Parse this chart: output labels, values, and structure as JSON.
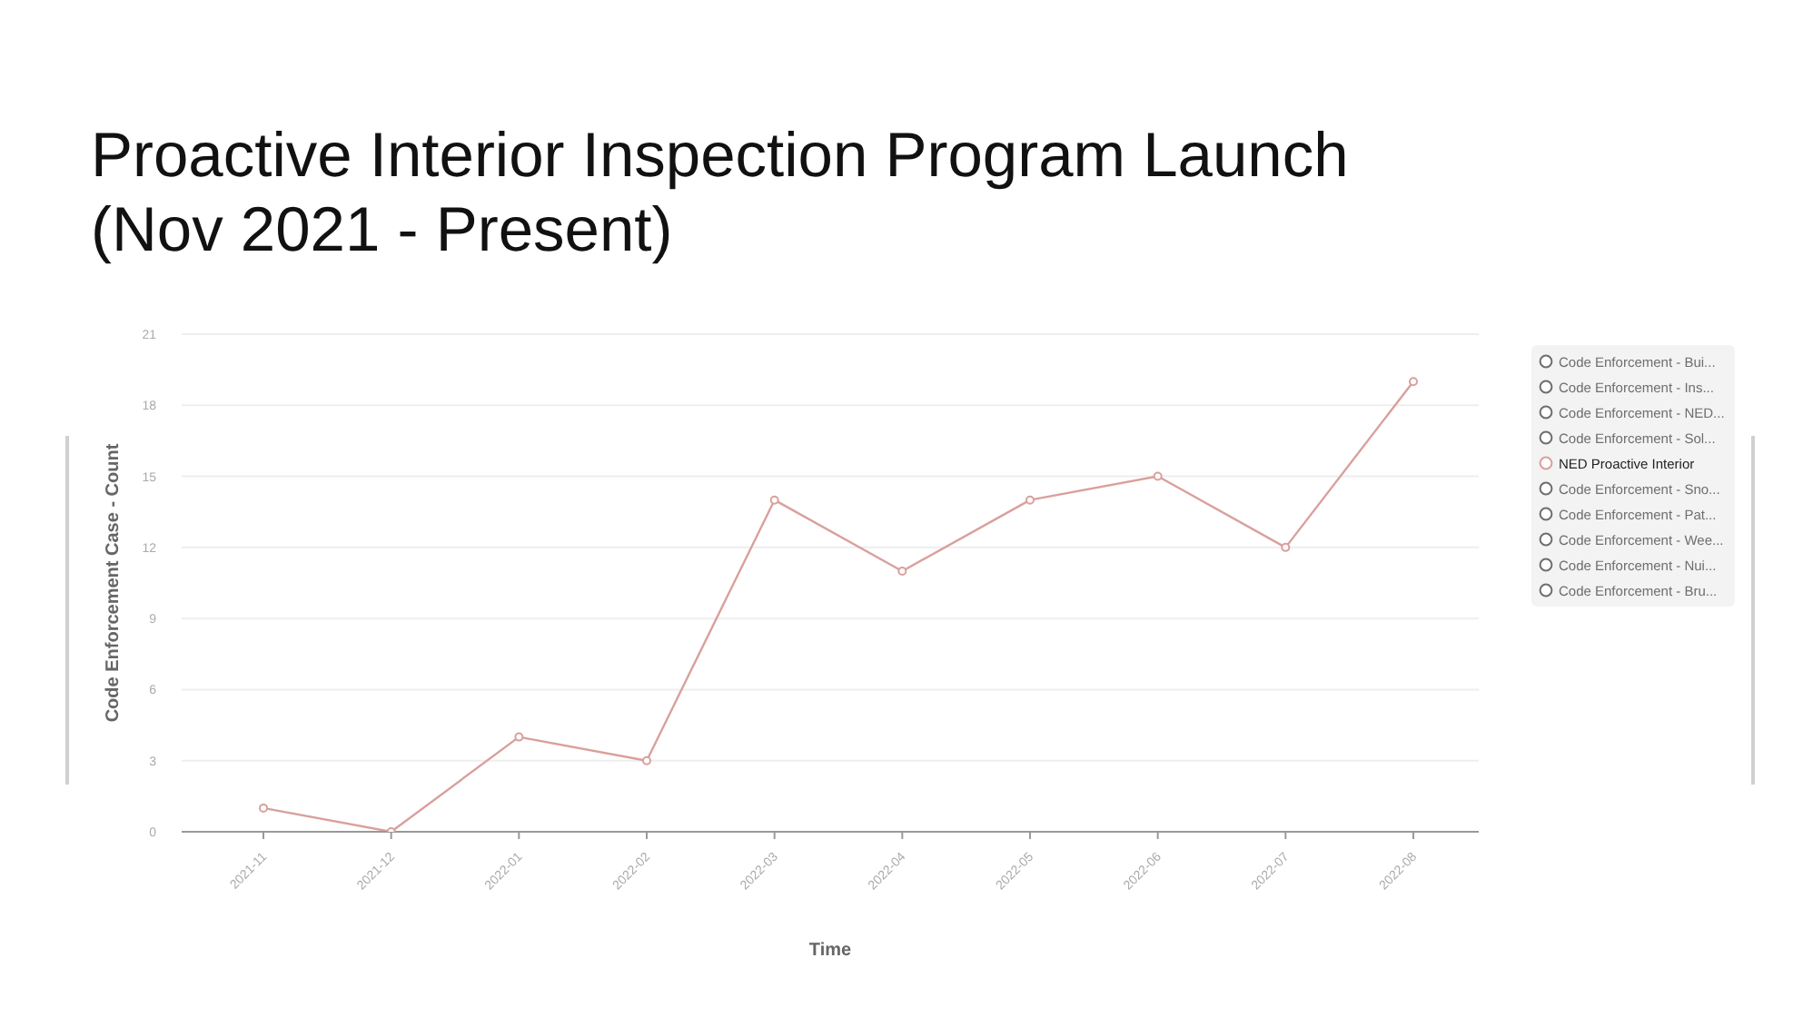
{
  "chart_data": {
    "type": "line",
    "title": "Proactive Interior Inspection Program Launch (Nov 2021 - Present)",
    "xlabel": "Time",
    "ylabel": "Code Enforcement Case - Count",
    "categories": [
      "2021-11",
      "2021-12",
      "2022-01",
      "2022-02",
      "2022-03",
      "2022-04",
      "2022-05",
      "2022-06",
      "2022-07",
      "2022-08"
    ],
    "series": [
      {
        "name": "Code Enforcement - Bui...",
        "color": "#6e6e6e",
        "values": [
          null,
          null,
          null,
          null,
          null,
          null,
          null,
          null,
          null,
          null
        ]
      },
      {
        "name": "Code Enforcement - Ins...",
        "color": "#6e6e6e",
        "values": [
          null,
          null,
          null,
          null,
          null,
          null,
          null,
          null,
          null,
          null
        ]
      },
      {
        "name": "Code Enforcement - NED...",
        "color": "#6e6e6e",
        "values": [
          null,
          null,
          null,
          null,
          null,
          null,
          null,
          null,
          null,
          null
        ]
      },
      {
        "name": "Code Enforcement - Sol...",
        "color": "#6e6e6e",
        "values": [
          null,
          null,
          null,
          null,
          null,
          null,
          null,
          null,
          null,
          null
        ]
      },
      {
        "name": "NED Proactive Interior",
        "color": "#d9a09c",
        "values": [
          1,
          0,
          4,
          3,
          14,
          11,
          14,
          15,
          12,
          19
        ]
      },
      {
        "name": "Code Enforcement - Sno...",
        "color": "#6e6e6e",
        "values": [
          null,
          null,
          null,
          null,
          null,
          null,
          null,
          null,
          null,
          null
        ]
      },
      {
        "name": "Code Enforcement - Pat...",
        "color": "#6e6e6e",
        "values": [
          null,
          null,
          null,
          null,
          null,
          null,
          null,
          null,
          null,
          null
        ]
      },
      {
        "name": "Code Enforcement - Wee...",
        "color": "#6e6e6e",
        "values": [
          null,
          null,
          null,
          null,
          null,
          null,
          null,
          null,
          null,
          null
        ]
      },
      {
        "name": "Code Enforcement - Nui...",
        "color": "#6e6e6e",
        "values": [
          null,
          null,
          null,
          null,
          null,
          null,
          null,
          null,
          null,
          null
        ]
      },
      {
        "name": "Code Enforcement - Bru...",
        "color": "#6e6e6e",
        "values": [
          null,
          null,
          null,
          null,
          null,
          null,
          null,
          null,
          null,
          null
        ]
      }
    ],
    "ylim": [
      0,
      21
    ],
    "yticks": [
      0,
      3,
      6,
      9,
      12,
      15,
      18,
      21
    ],
    "grid": "y",
    "legend": "right",
    "marker": "circle",
    "line_style": "solid"
  }
}
